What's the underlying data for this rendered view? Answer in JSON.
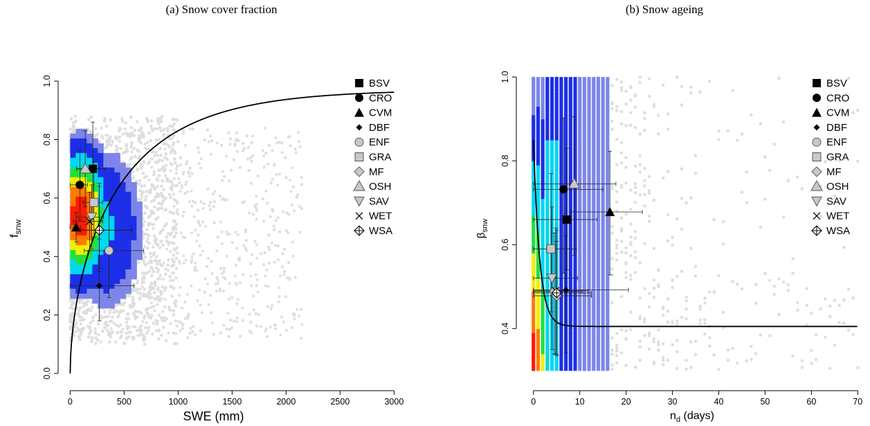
{
  "chart_data": [
    {
      "type": "scatter",
      "title": "(a) Snow cover fraction",
      "xlabel": "SWE  (mm)",
      "ylabel_main": "f",
      "ylabel_sub": "snw",
      "xlim": [
        -60,
        3100
      ],
      "ylim": [
        -0.04,
        1.05
      ],
      "xticks": [
        0,
        500,
        1000,
        1500,
        2000,
        2500,
        3000
      ],
      "yticks": [
        0.0,
        0.2,
        0.4,
        0.6,
        0.8,
        1.0
      ],
      "ytick_labels": [
        "0.0",
        "0.2",
        "0.4",
        "0.6",
        "0.8",
        "1.0"
      ],
      "legend_position": "top-right",
      "fit_curve": {
        "form": "saturating",
        "asymptote": 0.97,
        "k": 0.0014,
        "x_range": [
          0,
          3000
        ]
      },
      "series": [
        {
          "name": "BSV",
          "marker": "square-black",
          "x": 210,
          "y": 0.7,
          "xerr": [
            150,
            120
          ],
          "yerr": [
            0.16,
            0.16
          ]
        },
        {
          "name": "CRO",
          "marker": "circle-black",
          "x": 90,
          "y": 0.645,
          "xerr": [
            90,
            70
          ],
          "yerr": [
            0.12,
            0.12
          ]
        },
        {
          "name": "CVM",
          "marker": "triangle-black",
          "x": 55,
          "y": 0.5,
          "xerr": [
            55,
            40
          ],
          "yerr": [
            0.05,
            0.05
          ]
        },
        {
          "name": "DBF",
          "marker": "diamond-black",
          "x": 270,
          "y": 0.3,
          "xerr": [
            270,
            320
          ],
          "yerr": [
            0.12,
            0.16
          ]
        },
        {
          "name": "ENF",
          "marker": "circle-gray",
          "x": 360,
          "y": 0.42,
          "xerr": [
            230,
            320
          ],
          "yerr": [
            0.16,
            0.16
          ]
        },
        {
          "name": "GRA",
          "marker": "square-gray",
          "x": 220,
          "y": 0.585,
          "xerr": [
            100,
            80
          ],
          "yerr": [
            0.12,
            0.14
          ]
        },
        {
          "name": "MF",
          "marker": "diamond-gray",
          "x": 270,
          "y": 0.49,
          "xerr": [
            170,
            300
          ],
          "yerr": [
            0.14,
            0.16
          ]
        },
        {
          "name": "OSH",
          "marker": "triangle-gray",
          "x": 140,
          "y": 0.7,
          "xerr": [
            80,
            120
          ],
          "yerr": [
            0.13,
            0.13
          ]
        },
        {
          "name": "SAV",
          "marker": "triangle-down-gray",
          "x": 200,
          "y": 0.535,
          "xerr": [
            130,
            110
          ],
          "yerr": [
            0.11,
            0.11
          ]
        },
        {
          "name": "WET",
          "marker": "x",
          "x": 180,
          "y": 0.52,
          "xerr": [
            150,
            120
          ],
          "yerr": [
            0.1,
            0.1
          ]
        },
        {
          "name": "WSA",
          "marker": "crossed-diamond",
          "x": 270,
          "y": 0.49,
          "xerr": [
            170,
            300
          ],
          "yerr": [
            0.13,
            0.15
          ]
        }
      ]
    },
    {
      "type": "scatter",
      "title": "(b) Snow ageing",
      "xlabel_main": "n",
      "xlabel_sub": "d",
      "xlabel_suffix": " (days)",
      "ylabel_main": "β",
      "ylabel_sub": "snw",
      "xlim": [
        -2.5,
        71
      ],
      "ylim": [
        0.265,
        1.025
      ],
      "xticks": [
        0,
        10,
        20,
        30,
        40,
        50,
        60,
        70
      ],
      "yticks": [
        0.4,
        0.6,
        0.8,
        1.0
      ],
      "ytick_labels": [
        "0.4",
        "0.6",
        "0.8",
        "1.0"
      ],
      "legend_position": "top-right",
      "fit_curve": {
        "form": "exponential-decay",
        "y0": 0.85,
        "floor": 0.405,
        "k": 0.75,
        "x_range": [
          0,
          70
        ]
      },
      "series": [
        {
          "name": "BSV",
          "marker": "square-black",
          "x": 7.2,
          "y": 0.66,
          "xerr": [
            7.2,
            6.5
          ],
          "yerr": [
            0.12,
            0.17
          ]
        },
        {
          "name": "CRO",
          "marker": "circle-black",
          "x": 6.5,
          "y": 0.732,
          "xerr": [
            6.5,
            8.5
          ],
          "yerr": [
            0.2,
            0.17
          ]
        },
        {
          "name": "CVM",
          "marker": "triangle-black",
          "x": 16.5,
          "y": 0.678,
          "xerr": [
            8.5,
            7.0
          ],
          "yerr": [
            0.15,
            0.145
          ]
        },
        {
          "name": "DBF",
          "marker": "diamond-black",
          "x": 7.0,
          "y": 0.492,
          "xerr": [
            7.0,
            13.5
          ],
          "yerr": [
            0.15,
            0.13
          ]
        },
        {
          "name": "ENF",
          "marker": "circle-gray",
          "x": 4.5,
          "y": 0.488,
          "xerr": [
            4.5,
            6.0
          ],
          "yerr": [
            0.15,
            0.14
          ]
        },
        {
          "name": "GRA",
          "marker": "square-gray",
          "x": 3.8,
          "y": 0.59,
          "xerr": [
            3.8,
            5.5
          ],
          "yerr": [
            0.15,
            0.18
          ]
        },
        {
          "name": "MF",
          "marker": "diamond-gray",
          "x": 5.0,
          "y": 0.478,
          "xerr": [
            5.0,
            7.5
          ],
          "yerr": [
            0.14,
            0.13
          ]
        },
        {
          "name": "OSH",
          "marker": "triangle-gray",
          "x": 8.8,
          "y": 0.745,
          "xerr": [
            8.8,
            9.0
          ],
          "yerr": [
            0.17,
            0.16
          ]
        },
        {
          "name": "SAV",
          "marker": "triangle-down-gray",
          "x": 4.0,
          "y": 0.52,
          "xerr": [
            4.0,
            5.5
          ],
          "yerr": [
            0.17,
            0.17
          ]
        },
        {
          "name": "WET",
          "marker": "x",
          "x": 4.8,
          "y": 0.49,
          "xerr": [
            4.8,
            7.0
          ],
          "yerr": [
            0.15,
            0.15
          ]
        },
        {
          "name": "WSA",
          "marker": "crossed-diamond",
          "x": 5.0,
          "y": 0.485,
          "xerr": [
            5.0,
            7.5
          ],
          "yerr": [
            0.15,
            0.15
          ]
        }
      ]
    }
  ],
  "colors": {
    "gray_points": "#dedede",
    "density_low": "#b8bde6",
    "density_mid": "#2a3fe8",
    "density_high": "#ff2a00",
    "curve": "#000000"
  }
}
